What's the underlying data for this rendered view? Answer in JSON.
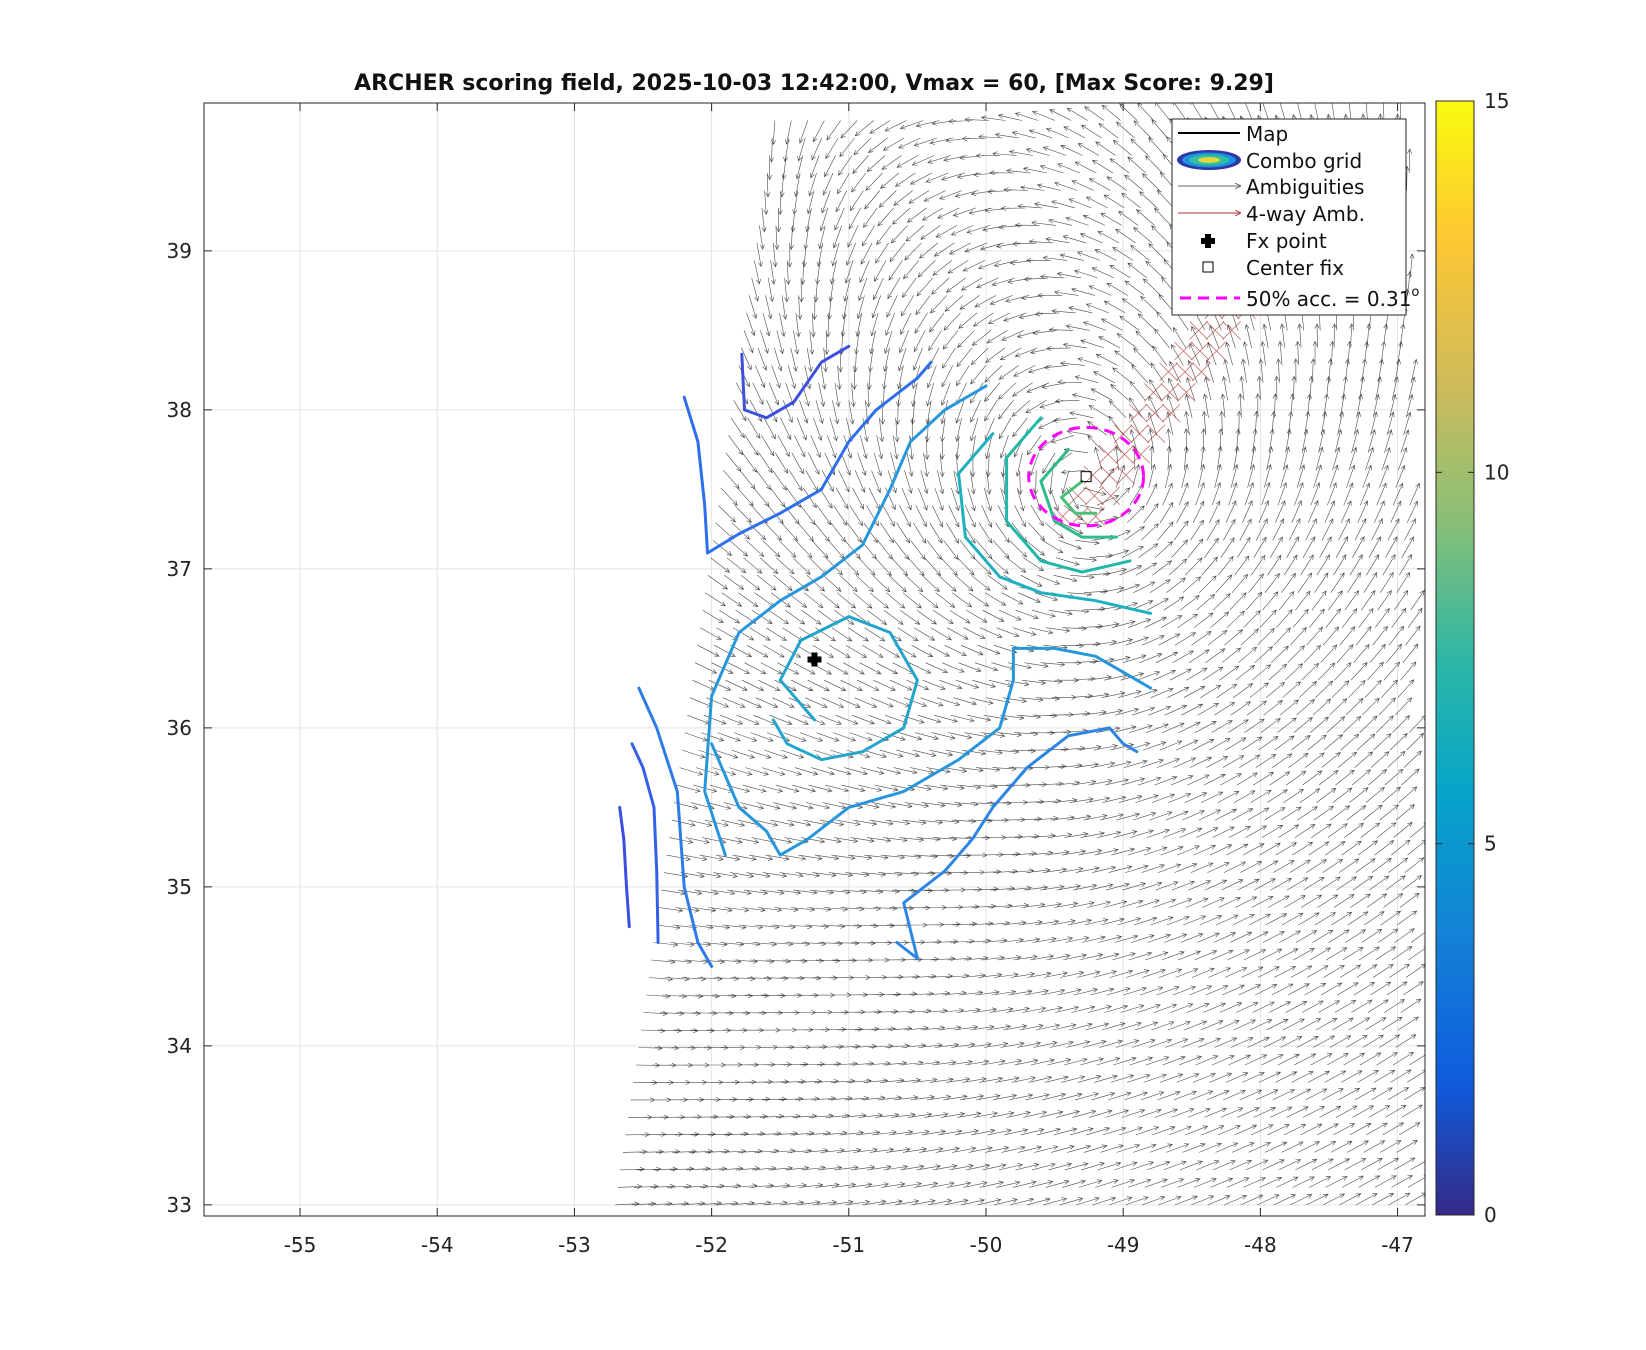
{
  "chart_data": {
    "type": "contour-quiver",
    "title": "ARCHER scoring field, 2025-10-03 12:42:00, Vmax = 60, [Max Score: 9.29]",
    "xlabel": "",
    "ylabel": "",
    "xlim": [
      -55.7,
      -46.8
    ],
    "ylim": [
      32.93,
      39.93
    ],
    "xticks": [
      "-55",
      "-54",
      "-53",
      "-52",
      "-51",
      "-50",
      "-49",
      "-48",
      "-47"
    ],
    "yticks": [
      "33",
      "34",
      "35",
      "36",
      "37",
      "38",
      "39"
    ],
    "grid": true,
    "colorbar": {
      "range": [
        0,
        15
      ],
      "ticks": [
        "0",
        "5",
        "10",
        "15"
      ],
      "colormap": "parula"
    },
    "legend_placement": "top-right",
    "legend": [
      {
        "label": "Map",
        "color": "#000000"
      },
      {
        "label": "Combo grid",
        "color": "#2c38a8"
      },
      {
        "label": "Ambiguities",
        "color": "#555555"
      },
      {
        "label": "4-way Amb.",
        "color": "#b03030"
      },
      {
        "label": "Fx point",
        "color": "#000000"
      },
      {
        "label": "Center fix",
        "color": "#000000"
      },
      {
        "label": "50% acc. = 0.31",
        "superscript": "o",
        "color": "#ff00ff"
      }
    ],
    "fx_point": {
      "lon": -51.25,
      "lat": 36.43
    },
    "center_fix": {
      "lon": -49.27,
      "lat": 37.58
    },
    "accuracy_circle": {
      "lon": -49.27,
      "lat": 37.58,
      "radius_deg": 0.31
    },
    "swath_boundary": [
      [
        -52.8,
        32.9
      ],
      [
        -47.2,
        32.9
      ],
      [
        -47.2,
        39.93
      ],
      [
        -51.6,
        39.93
      ]
    ],
    "contours": [
      {
        "level": 3.0,
        "color": "#3a4ee0",
        "points": [
          [
            -52.67,
            35.5
          ],
          [
            -52.64,
            35.3
          ],
          [
            -52.62,
            35.0
          ],
          [
            -52.6,
            34.75
          ]
        ]
      },
      {
        "level": 3.6,
        "color": "#3460e8",
        "points": [
          [
            -52.58,
            35.9
          ],
          [
            -52.5,
            35.75
          ],
          [
            -52.42,
            35.5
          ],
          [
            -52.4,
            35.1
          ],
          [
            -52.39,
            34.65
          ]
        ]
      },
      {
        "level": 4.0,
        "color": "#2f6fea",
        "points": [
          [
            -52.2,
            38.08
          ],
          [
            -52.1,
            37.8
          ],
          [
            -52.05,
            37.4
          ],
          [
            -52.03,
            37.1
          ],
          [
            -51.8,
            37.22
          ],
          [
            -51.5,
            37.35
          ],
          [
            -51.2,
            37.5
          ],
          [
            -51.0,
            37.8
          ],
          [
            -50.8,
            38.0
          ],
          [
            -50.5,
            38.2
          ],
          [
            -50.4,
            38.3
          ]
        ]
      },
      {
        "level": 4.2,
        "color": "#3c50dc",
        "points": [
          [
            -51.78,
            38.35
          ],
          [
            -51.76,
            38.0
          ],
          [
            -51.6,
            37.95
          ],
          [
            -51.4,
            38.05
          ],
          [
            -51.2,
            38.3
          ],
          [
            -51.0,
            38.4
          ]
        ]
      },
      {
        "level": 4.6,
        "color": "#2d7ce6",
        "points": [
          [
            -52.53,
            36.25
          ],
          [
            -52.4,
            36.0
          ],
          [
            -52.25,
            35.6
          ],
          [
            -52.2,
            35.0
          ],
          [
            -52.1,
            34.65
          ],
          [
            -52.0,
            34.5
          ]
        ]
      },
      {
        "level": 4.8,
        "color": "#2d86e2",
        "points": [
          [
            -50.65,
            34.65
          ],
          [
            -50.5,
            34.55
          ],
          [
            -50.6,
            34.9
          ],
          [
            -50.3,
            35.1
          ],
          [
            -50.1,
            35.3
          ],
          [
            -49.95,
            35.5
          ],
          [
            -49.7,
            35.75
          ],
          [
            -49.4,
            35.95
          ],
          [
            -49.1,
            36.0
          ],
          [
            -49.0,
            35.9
          ],
          [
            -48.9,
            35.85
          ]
        ]
      },
      {
        "level": 5.5,
        "color": "#2896da",
        "points": [
          [
            -52.0,
            35.9
          ],
          [
            -51.8,
            35.5
          ],
          [
            -51.6,
            35.35
          ],
          [
            -51.5,
            35.2
          ],
          [
            -51.3,
            35.3
          ],
          [
            -51.0,
            35.5
          ],
          [
            -50.6,
            35.6
          ],
          [
            -50.2,
            35.8
          ],
          [
            -49.9,
            36.0
          ],
          [
            -49.8,
            36.3
          ],
          [
            -49.8,
            36.5
          ],
          [
            -49.5,
            36.5
          ],
          [
            -49.2,
            36.45
          ],
          [
            -49.0,
            36.35
          ],
          [
            -48.8,
            36.25
          ]
        ]
      },
      {
        "level": 5.5,
        "color": "#2896da",
        "points": [
          [
            -51.9,
            35.2
          ],
          [
            -52.05,
            35.6
          ],
          [
            -52.0,
            36.2
          ],
          [
            -51.8,
            36.6
          ],
          [
            -51.5,
            36.8
          ],
          [
            -51.2,
            36.95
          ],
          [
            -50.9,
            37.15
          ],
          [
            -50.7,
            37.5
          ],
          [
            -50.55,
            37.8
          ],
          [
            -50.3,
            38.0
          ],
          [
            -50.0,
            38.15
          ]
        ]
      },
      {
        "level": 6.2,
        "color": "#22a4cc",
        "points": [
          [
            -51.25,
            36.05
          ],
          [
            -51.5,
            36.3
          ],
          [
            -51.35,
            36.55
          ],
          [
            -51.0,
            36.7
          ],
          [
            -50.7,
            36.6
          ],
          [
            -50.5,
            36.3
          ],
          [
            -50.6,
            36.0
          ],
          [
            -50.9,
            35.85
          ],
          [
            -51.2,
            35.8
          ],
          [
            -51.45,
            35.9
          ],
          [
            -51.55,
            36.05
          ]
        ]
      },
      {
        "level": 6.8,
        "color": "#1cb0c0",
        "points": [
          [
            -49.95,
            37.85
          ],
          [
            -50.2,
            37.6
          ],
          [
            -50.15,
            37.2
          ],
          [
            -49.9,
            36.95
          ],
          [
            -49.6,
            36.85
          ],
          [
            -49.2,
            36.8
          ],
          [
            -48.8,
            36.72
          ]
        ]
      },
      {
        "level": 7.5,
        "color": "#20b8a8",
        "points": [
          [
            -49.6,
            37.95
          ],
          [
            -49.85,
            37.7
          ],
          [
            -49.85,
            37.3
          ],
          [
            -49.6,
            37.05
          ],
          [
            -49.3,
            36.98
          ],
          [
            -48.95,
            37.05
          ]
        ]
      },
      {
        "level": 8.2,
        "color": "#2cbc90",
        "points": [
          [
            -49.4,
            37.75
          ],
          [
            -49.6,
            37.55
          ],
          [
            -49.5,
            37.3
          ],
          [
            -49.3,
            37.2
          ],
          [
            -49.05,
            37.2
          ]
        ]
      },
      {
        "level": 8.8,
        "color": "#4cc078",
        "points": [
          [
            -49.3,
            37.55
          ],
          [
            -49.45,
            37.45
          ],
          [
            -49.35,
            37.35
          ],
          [
            -49.2,
            37.35
          ]
        ]
      }
    ]
  }
}
